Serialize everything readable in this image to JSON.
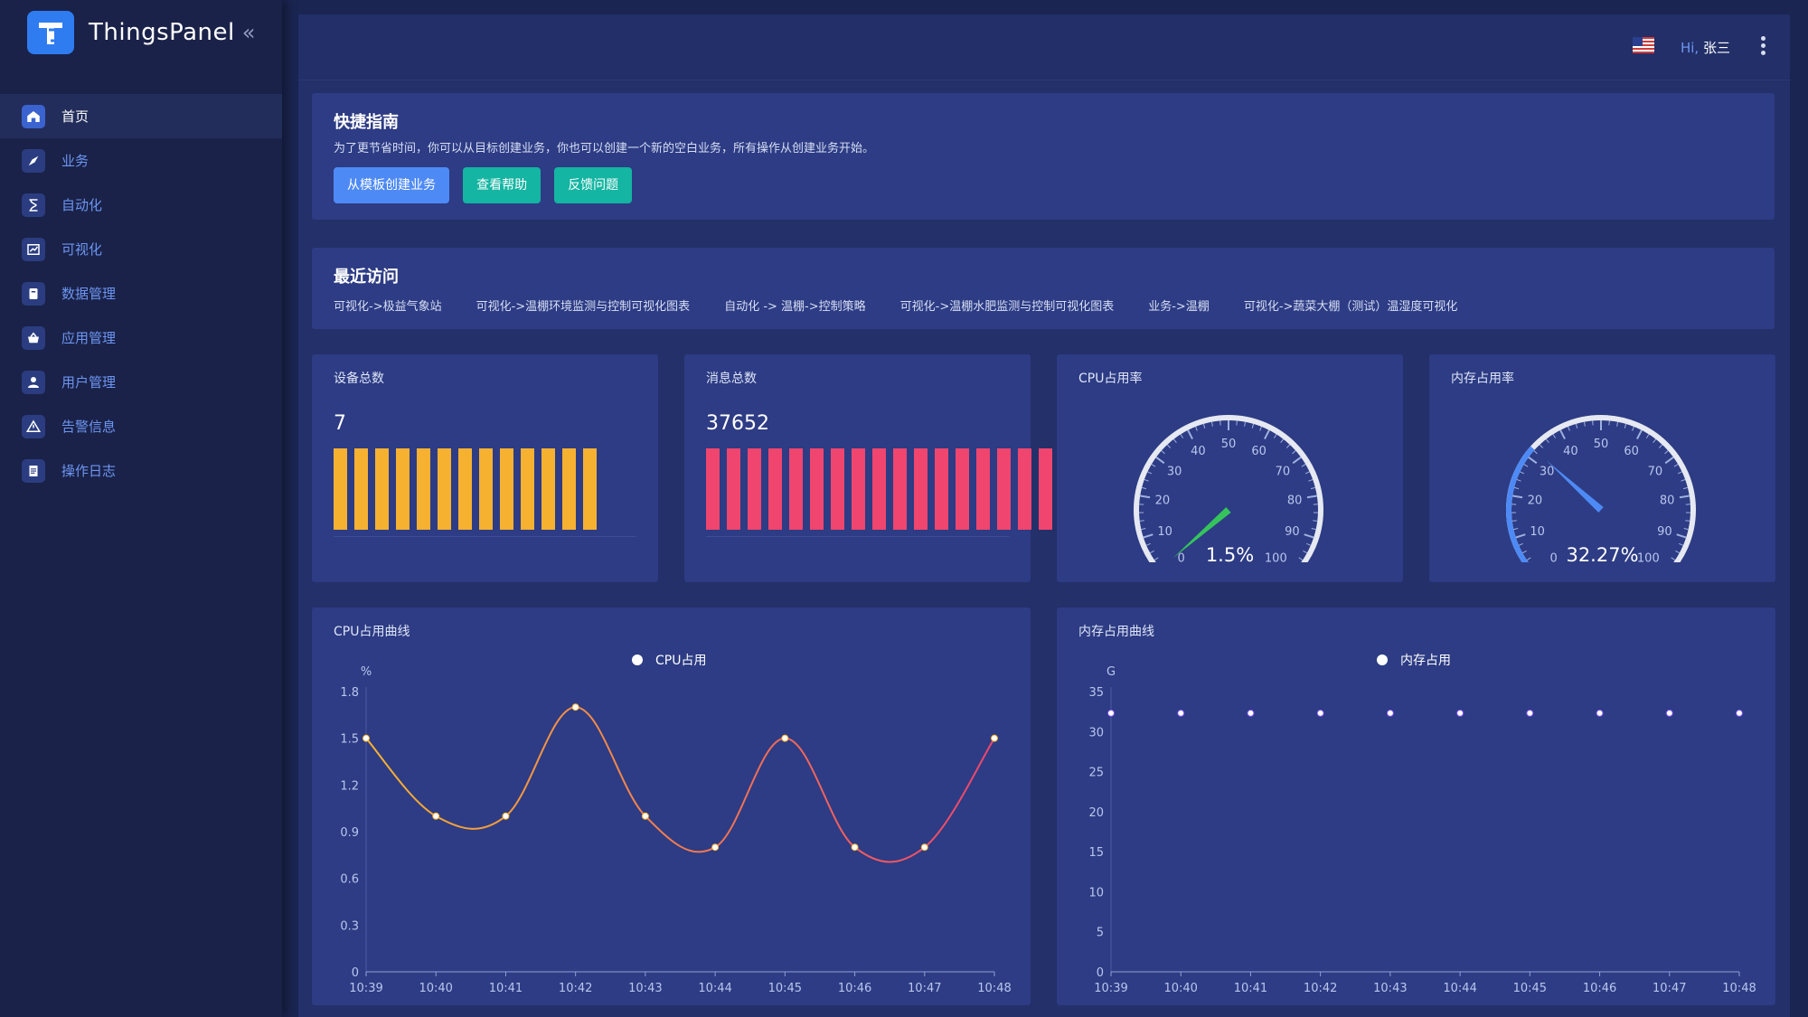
{
  "app": {
    "name": "ThingsPanel",
    "collapse_glyph": "«"
  },
  "sidebar": {
    "items": [
      {
        "label": "首页",
        "icon": "home-icon",
        "active": true
      },
      {
        "label": "业务",
        "icon": "compass-icon",
        "active": false
      },
      {
        "label": "自动化",
        "icon": "hourglass-icon",
        "active": false
      },
      {
        "label": "可视化",
        "icon": "chart-icon",
        "active": false
      },
      {
        "label": "数据管理",
        "icon": "clipboard-icon",
        "active": false
      },
      {
        "label": "应用管理",
        "icon": "basket-icon",
        "active": false
      },
      {
        "label": "用户管理",
        "icon": "user-icon",
        "active": false
      },
      {
        "label": "告警信息",
        "icon": "warning-icon",
        "active": false
      },
      {
        "label": "操作日志",
        "icon": "document-icon",
        "active": false
      }
    ]
  },
  "header": {
    "greeting_prefix": "Hi,",
    "username": "张三",
    "language_icon": "us-flag-icon",
    "more_icon": "more-vertical-icon"
  },
  "quick_guide": {
    "title": "快捷指南",
    "description": "为了更节省时间，你可以从目标创建业务，你也可以创建一个新的空白业务，所有操作从创建业务开始。",
    "buttons": [
      "从模板创建业务",
      "查看帮助",
      "反馈问题"
    ]
  },
  "recent": {
    "title": "最近访问",
    "links": [
      "可视化->极益气象站",
      "可视化->温棚环境监测与控制可视化图表",
      "自动化 -> 温棚->控制策略",
      "可视化->温棚水肥监测与控制可视化图表",
      "业务->温棚",
      "可视化->蔬菜大棚（测试）温湿度可视化"
    ]
  },
  "stats": {
    "devices": {
      "label": "设备总数",
      "value": "7",
      "color": "#f6b131",
      "bar_count": 13
    },
    "messages": {
      "label": "消息总数",
      "value": "37652",
      "color": "#f0456e",
      "bar_count": 17
    }
  },
  "gauges": {
    "cpu": {
      "label": "CPU占用率",
      "value": 1.5,
      "display": "1.5%",
      "color": "#35c45c",
      "ticks": [
        "0",
        "10",
        "20",
        "30",
        "40",
        "50",
        "60",
        "70",
        "80",
        "90",
        "100"
      ]
    },
    "memory": {
      "label": "内存占用率",
      "value": 32.27,
      "display": "32.27%",
      "color": "#4e8af5",
      "ticks": [
        "0",
        "10",
        "20",
        "30",
        "40",
        "50",
        "60",
        "70",
        "80",
        "90",
        "100"
      ]
    }
  },
  "chart_data": [
    {
      "type": "line",
      "title": "CPU占用曲线",
      "ylabel": "%",
      "legend": "CPU占用",
      "x": [
        "10:39",
        "10:40",
        "10:41",
        "10:42",
        "10:43",
        "10:44",
        "10:45",
        "10:46",
        "10:47",
        "10:48"
      ],
      "y_ticks": [
        "0",
        "0.3",
        "0.6",
        "0.9",
        "1.2",
        "1.5",
        "1.8"
      ],
      "ylim": [
        0,
        1.8
      ],
      "series": [
        {
          "name": "CPU占用",
          "values": [
            1.5,
            1.0,
            1.0,
            1.7,
            1.0,
            0.8,
            1.5,
            0.8,
            0.8,
            1.5
          ]
        }
      ],
      "colors": [
        "#f6b131",
        "#f0456e"
      ]
    },
    {
      "type": "line",
      "title": "内存占用曲线",
      "ylabel": "G",
      "legend": "内存占用",
      "x": [
        "10:39",
        "10:40",
        "10:41",
        "10:42",
        "10:43",
        "10:44",
        "10:45",
        "10:46",
        "10:47",
        "10:48"
      ],
      "y_ticks": [
        "0",
        "5",
        "10",
        "15",
        "20",
        "25",
        "30",
        "35"
      ],
      "ylim": [
        0,
        35
      ],
      "series": [
        {
          "name": "内存占用",
          "values": [
            32.3,
            32.3,
            32.3,
            32.3,
            32.3,
            32.3,
            32.3,
            32.3,
            32.3,
            32.3
          ]
        }
      ],
      "colors": [
        "#7b4ff0",
        "#4e8af5"
      ]
    }
  ]
}
